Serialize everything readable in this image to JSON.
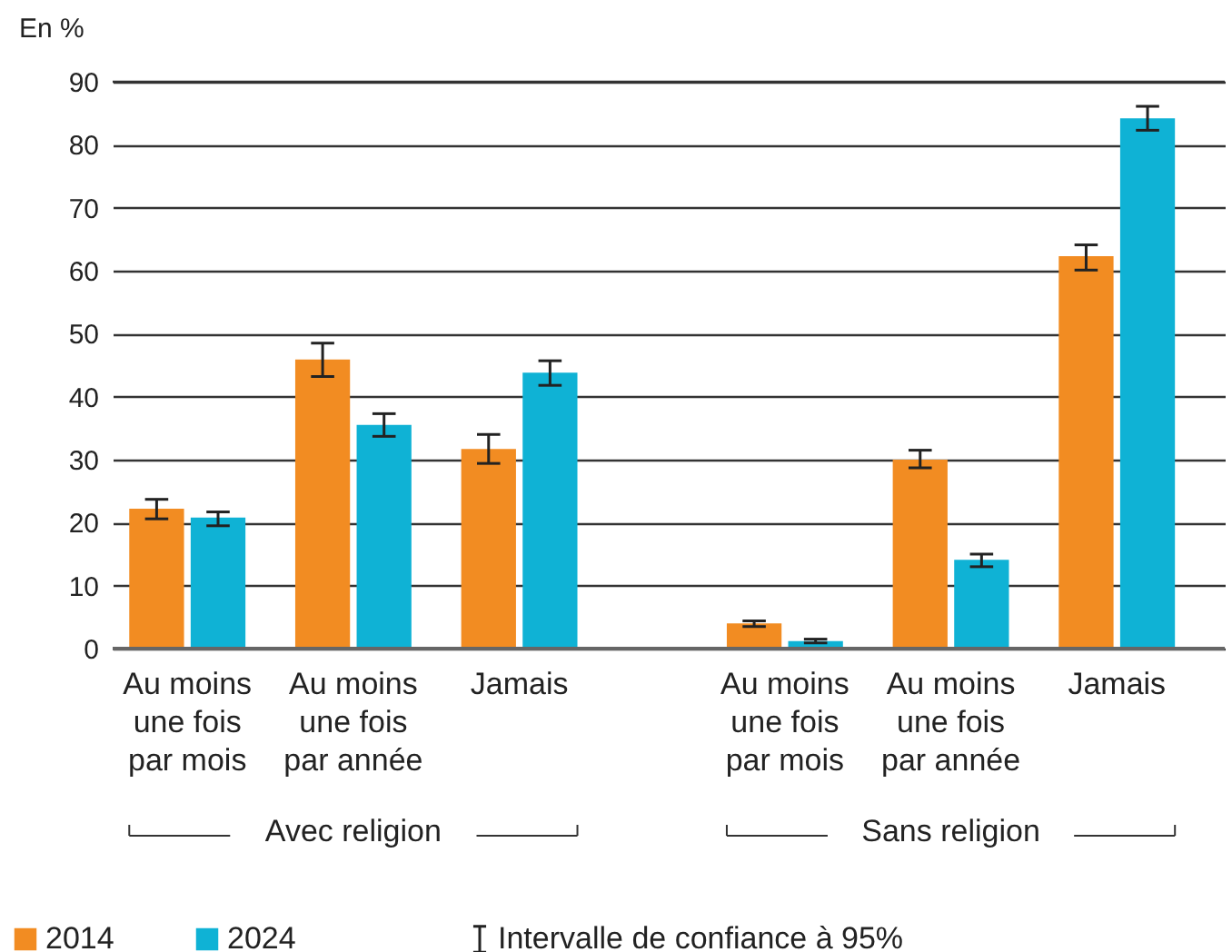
{
  "chart_data": {
    "type": "bar",
    "ylabel": "En %",
    "categories": [
      "Au moins\nune fois\npar mois",
      "Au moins\nune fois\npar année",
      "Jamais",
      "Au moins\nune fois\npar mois",
      "Au moins\nune fois\npar année",
      "Jamais"
    ],
    "series": [
      {
        "name": "2014",
        "color": "#f28c22",
        "values": [
          22.2,
          45.9,
          31.7,
          4.0,
          30.0,
          62.3
        ],
        "errors": [
          [
            20.6,
            23.7
          ],
          [
            43.2,
            48.5
          ],
          [
            29.4,
            34.0
          ],
          [
            3.5,
            4.4
          ],
          [
            28.7,
            31.5
          ],
          [
            60.1,
            64.1
          ]
        ]
      },
      {
        "name": "2024",
        "color": "#0fb2d5",
        "values": [
          20.8,
          35.5,
          43.8,
          1.2,
          14.1,
          84.2
        ],
        "errors": [
          [
            19.5,
            21.7
          ],
          [
            33.7,
            37.3
          ],
          [
            41.8,
            45.7
          ],
          [
            0.9,
            1.5
          ],
          [
            13.0,
            15.0
          ],
          [
            82.3,
            86.1
          ]
        ]
      }
    ],
    "annotations": [
      "Avec religion",
      "Sans religion",
      "Intervalle de confiance à 95%"
    ],
    "ylim": [
      0,
      90
    ],
    "yticks": [
      0,
      10,
      20,
      30,
      40,
      50,
      60,
      70,
      80,
      90
    ],
    "grid": "y",
    "legend": "bottom"
  }
}
